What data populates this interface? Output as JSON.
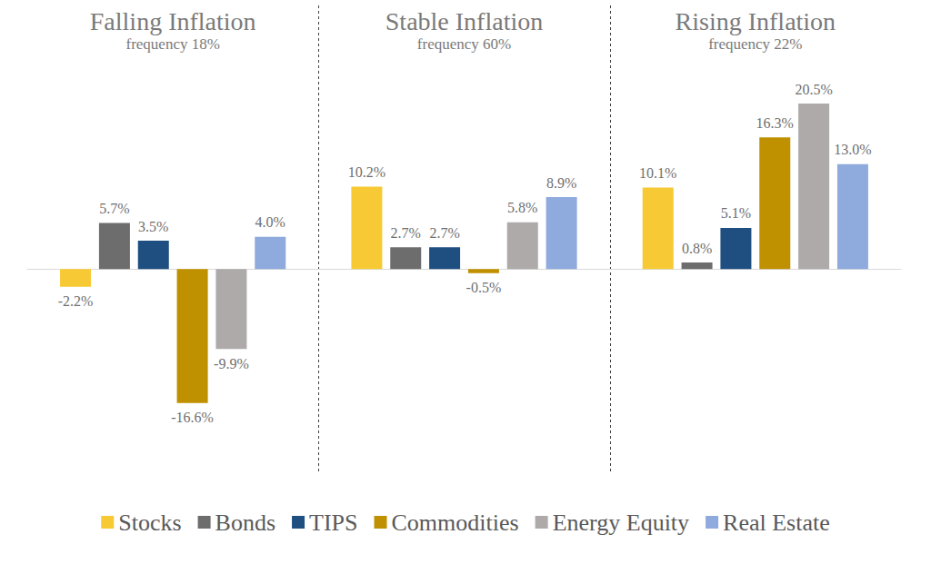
{
  "chart_data": {
    "type": "bar",
    "categories": [
      "Falling Inflation",
      "Stable Inflation",
      "Rising Inflation"
    ],
    "annotations": [
      "frequency 18%",
      "frequency 60%",
      "frequency 22%"
    ],
    "series": [
      {
        "name": "Stocks",
        "color": "#f7c934",
        "values": [
          -2.2,
          10.2,
          10.1
        ],
        "value_labels": [
          "-2.2%",
          "10.2%",
          "10.1%"
        ]
      },
      {
        "name": "Bonds",
        "color": "#6d6d6d",
        "values": [
          5.7,
          2.7,
          0.8
        ],
        "value_labels": [
          "5.7%",
          "2.7%",
          "0.8%"
        ]
      },
      {
        "name": "TIPS",
        "color": "#1f4e80",
        "values": [
          3.5,
          2.7,
          5.1
        ],
        "value_labels": [
          "3.5%",
          "2.7%",
          "5.1%"
        ]
      },
      {
        "name": "Commodities",
        "color": "#bf9000",
        "values": [
          -16.6,
          -0.5,
          16.3
        ],
        "value_labels": [
          "-16.6%",
          "-0.5%",
          "16.3%"
        ]
      },
      {
        "name": "Energy Equity",
        "color": "#aeaaaa",
        "values": [
          -9.9,
          5.8,
          20.5
        ],
        "value_labels": [
          "-9.9%",
          "5.8%",
          "20.5%"
        ]
      },
      {
        "name": "Real Estate",
        "color": "#8faadc",
        "values": [
          4.0,
          8.9,
          13.0
        ],
        "value_labels": [
          "4.0%",
          "8.9%",
          "13.0%"
        ]
      }
    ],
    "ylim": [
      -20,
      25
    ],
    "yticks": [
      -20,
      -15,
      -10,
      -5,
      0,
      5,
      10,
      15,
      20,
      25
    ],
    "data_labels": true,
    "tick_labels": false,
    "grid": false,
    "legend": "bottom"
  }
}
